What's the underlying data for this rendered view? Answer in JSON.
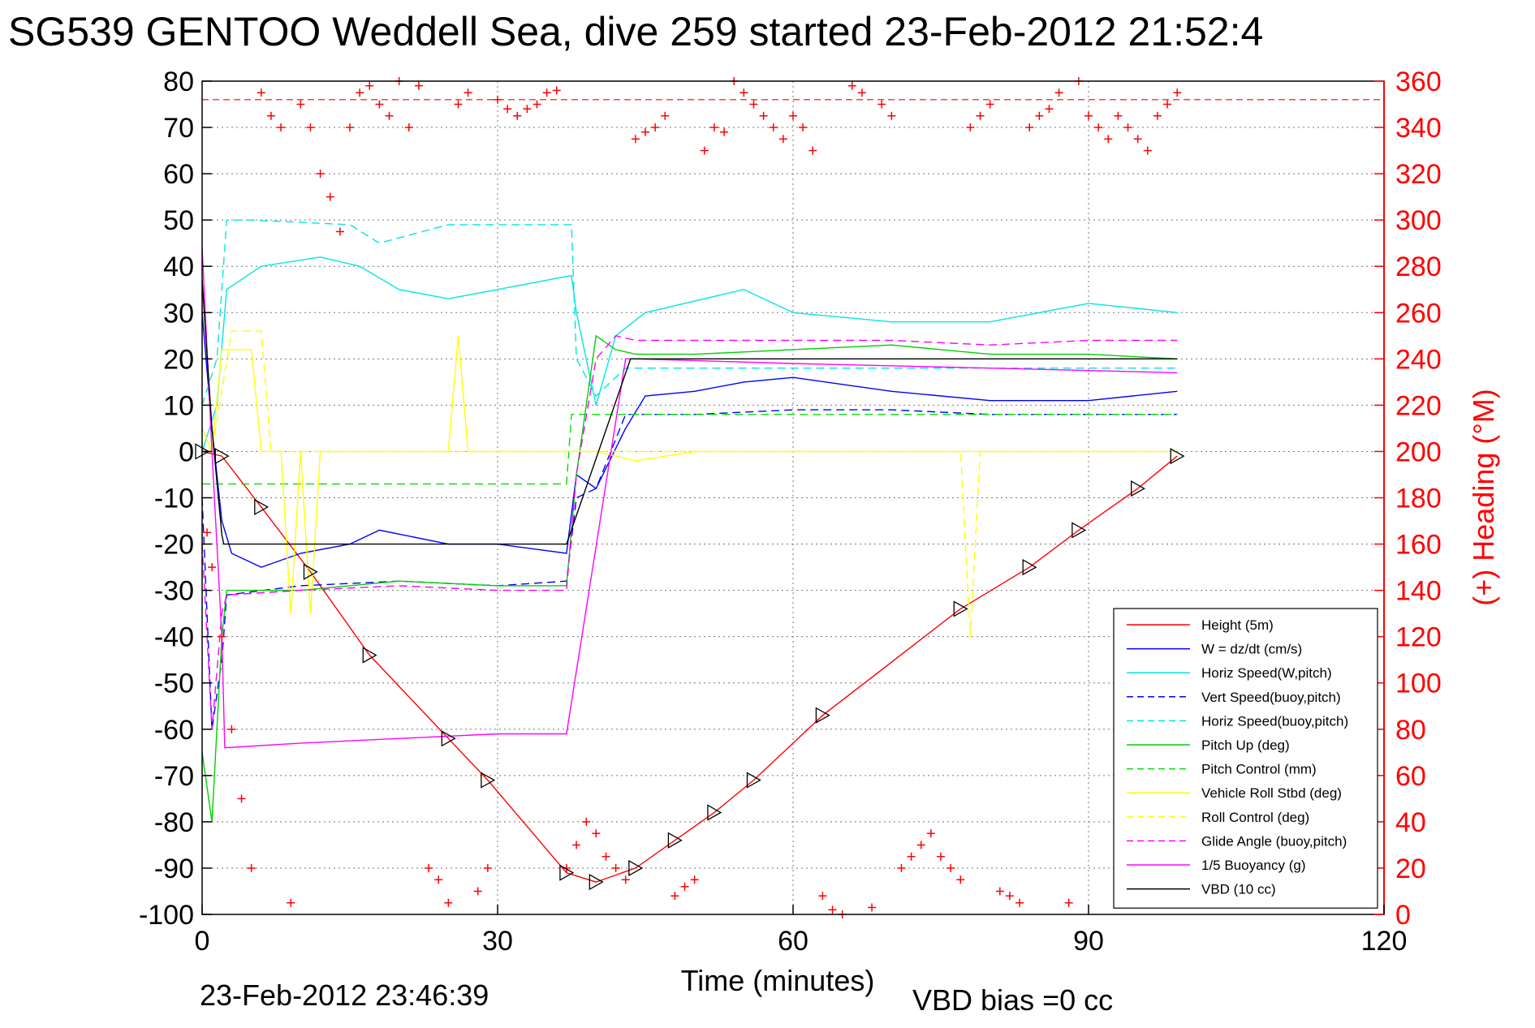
{
  "chart_data": {
    "type": "line",
    "title": "SG539 GENTOO Weddell Sea, dive 259 started 23-Feb-2012 21:52:4",
    "xlabel": "Time (minutes)",
    "ylabel_right": "(+) Heading (°M)",
    "xlim": [
      0,
      120
    ],
    "ylim_left": [
      -100,
      80
    ],
    "ylim_right": [
      0,
      360
    ],
    "xticks": [
      0,
      30,
      60,
      90,
      120
    ],
    "yticks_left": [
      80,
      70,
      60,
      50,
      40,
      30,
      20,
      10,
      0,
      -10,
      -20,
      -30,
      -40,
      -50,
      -60,
      -70,
      -80,
      -90,
      -100
    ],
    "yticks_right": [
      360,
      340,
      320,
      300,
      280,
      260,
      240,
      220,
      200,
      180,
      160,
      140,
      120,
      100,
      80,
      60,
      40,
      20,
      0
    ],
    "grid": true,
    "legend_position": "bottom-right",
    "footer_left": "23-Feb-2012 23:46:39",
    "footer_right": "VBD bias =0 cc",
    "heading_reference": 352,
    "series": [
      {
        "name": "Height (5m)",
        "color": "#ff0000",
        "style": "solid",
        "x": [
          0,
          2,
          6,
          11,
          17,
          25,
          29,
          37,
          40,
          44,
          48,
          52,
          56,
          63,
          77,
          84,
          89,
          95,
          99
        ],
        "y": [
          0,
          -1,
          -12,
          -26,
          -44,
          -62,
          -71,
          -91,
          -93,
          -90,
          -84,
          -78,
          -71,
          -57,
          -34,
          -25,
          -17,
          -8,
          -1
        ]
      },
      {
        "name": "W = dz/dt (cm/s)",
        "color": "#0000ff",
        "style": "solid",
        "x": [
          0,
          1,
          2,
          3,
          6,
          10,
          15,
          18,
          25,
          30,
          37,
          38,
          40,
          43,
          45,
          50,
          55,
          60,
          70,
          80,
          90,
          99
        ],
        "y": [
          30,
          5,
          -15,
          -22,
          -25,
          -22,
          -20,
          -17,
          -20,
          -20,
          -22,
          -5,
          -8,
          5,
          12,
          13,
          15,
          16,
          13,
          11,
          11,
          13
        ]
      },
      {
        "name": "Horiz Speed(W,pitch)",
        "color": "#00e5e5",
        "style": "solid",
        "x": [
          0,
          1.5,
          2.5,
          6,
          12,
          16,
          20,
          25,
          30,
          37.5,
          38,
          40,
          42,
          45,
          55,
          60,
          70,
          80,
          90,
          99
        ],
        "y": [
          0,
          10,
          35,
          40,
          42,
          40,
          35,
          33,
          35,
          38,
          30,
          10,
          25,
          30,
          35,
          30,
          28,
          28,
          32,
          30
        ]
      },
      {
        "name": "Vert Speed(buoy,pitch)",
        "color": "#0000ff",
        "style": "dashed",
        "x": [
          0,
          1,
          2,
          2.5,
          10,
          20,
          30,
          37,
          38,
          40,
          43,
          44,
          50,
          60,
          70,
          80,
          90,
          99
        ],
        "y": [
          -10,
          -60,
          -45,
          -31,
          -29,
          -28,
          -29,
          -28,
          -10,
          -8,
          8,
          8,
          8,
          9,
          9,
          8,
          8,
          8
        ]
      },
      {
        "name": "Horiz Speed(buoy,pitch)",
        "color": "#00e5e5",
        "style": "dashed",
        "x": [
          0,
          1.5,
          2.5,
          5,
          15,
          18,
          25,
          37.5,
          38,
          40,
          43,
          44,
          60,
          80,
          99
        ],
        "y": [
          10,
          20,
          50,
          50,
          49,
          45,
          49,
          49,
          20,
          12,
          18,
          18,
          18,
          18,
          18
        ]
      },
      {
        "name": "Pitch Up (deg)",
        "color": "#00d000",
        "style": "solid",
        "x": [
          0,
          1,
          2,
          2.5,
          10,
          20,
          30,
          37,
          38,
          40,
          42,
          44,
          50,
          60,
          70,
          80,
          90,
          99
        ],
        "y": [
          -65,
          -80,
          -40,
          -30,
          -30,
          -28,
          -29,
          -29,
          -5,
          25,
          22,
          21,
          21,
          22,
          23,
          21,
          21,
          20
        ]
      },
      {
        "name": "Pitch Control (mm)",
        "color": "#00e000",
        "style": "dashed",
        "x": [
          0,
          2,
          2.5,
          37,
          37.5,
          44,
          99
        ],
        "y": [
          -7,
          -7,
          -7,
          -7,
          8,
          8,
          8
        ]
      },
      {
        "name": "Vehicle Roll Stbd (deg)",
        "color": "#ffff00",
        "style": "solid",
        "x": [
          0,
          1,
          2,
          5,
          6,
          8,
          9,
          10,
          11,
          12,
          20,
          25,
          26,
          27,
          30,
          40,
          44,
          50,
          60,
          70,
          80,
          90,
          99
        ],
        "y": [
          5,
          0,
          22,
          22,
          0,
          0,
          -35,
          0,
          -35,
          0,
          0,
          0,
          25,
          0,
          0,
          0,
          -2,
          0,
          0,
          0,
          0,
          0,
          0
        ]
      },
      {
        "name": "Roll Control (deg)",
        "color": "#ffff00",
        "style": "dashed",
        "x": [
          0,
          1,
          3,
          6,
          7,
          20,
          37,
          38,
          40,
          44,
          45,
          60,
          77,
          78,
          79,
          99
        ],
        "y": [
          0,
          0,
          26,
          26,
          0,
          0,
          0,
          0,
          0,
          0,
          0,
          0,
          0,
          -40,
          0,
          0
        ]
      },
      {
        "name": "Glide Angle (buoy,pitch)",
        "color": "#ff00ff",
        "style": "dashed",
        "x": [
          0,
          1,
          2,
          2.5,
          10,
          20,
          30,
          37,
          38,
          40,
          42,
          44,
          50,
          60,
          70,
          80,
          90,
          99
        ],
        "y": [
          -20,
          -60,
          -35,
          -31,
          -30,
          -29,
          -30,
          -30,
          -5,
          20,
          25,
          24,
          24,
          24,
          24,
          23,
          24,
          24
        ]
      },
      {
        "name": "1/5 Buoyancy (g)",
        "color": "#ff00ff",
        "style": "solid",
        "x": [
          0,
          1,
          2,
          2.3,
          10,
          20,
          30,
          37,
          43,
          44,
          60,
          80,
          99
        ],
        "y": [
          44,
          0,
          -40,
          -64,
          -63,
          -62,
          -61,
          -61,
          20,
          20,
          19,
          18,
          17
        ]
      },
      {
        "name": "VBD (10 cc)",
        "color": "#000000",
        "style": "solid",
        "x": [
          0,
          1,
          2,
          2.2,
          37,
          43.5,
          44,
          99
        ],
        "y": [
          37,
          5,
          -18,
          -20,
          -20,
          20,
          20,
          20
        ]
      }
    ],
    "heading_series": {
      "name": "Heading",
      "color": "#ff0000",
      "marker": "+",
      "x": [
        0.5,
        1,
        2,
        3,
        4,
        5,
        6,
        7,
        8,
        9,
        10,
        11,
        12,
        13,
        14,
        15,
        16,
        17,
        18,
        19,
        20,
        21,
        22,
        23,
        24,
        25,
        26,
        27,
        28,
        29,
        30,
        31,
        32,
        33,
        34,
        35,
        36,
        37,
        38,
        39,
        40,
        41,
        42,
        43,
        44,
        45,
        46,
        47,
        48,
        49,
        50,
        51,
        52,
        53,
        54,
        55,
        56,
        57,
        58,
        59,
        60,
        61,
        62,
        63,
        64,
        65,
        66,
        67,
        68,
        69,
        70,
        71,
        72,
        73,
        74,
        75,
        76,
        77,
        78,
        79,
        80,
        81,
        82,
        83,
        84,
        85,
        86,
        87,
        88,
        89,
        90,
        91,
        92,
        93,
        94,
        95,
        96,
        97,
        98,
        99
      ],
      "y": [
        165,
        150,
        120,
        80,
        50,
        20,
        355,
        345,
        340,
        5,
        350,
        340,
        320,
        310,
        295,
        340,
        355,
        358,
        350,
        345,
        360,
        340,
        358,
        20,
        15,
        5,
        350,
        355,
        10,
        20,
        352,
        348,
        345,
        348,
        350,
        355,
        356,
        20,
        30,
        40,
        35,
        25,
        20,
        15,
        335,
        338,
        340,
        345,
        8,
        12,
        15,
        330,
        340,
        338,
        360,
        355,
        350,
        345,
        340,
        335,
        345,
        340,
        330,
        8,
        2,
        0,
        358,
        355,
        3,
        350,
        345,
        20,
        25,
        30,
        35,
        25,
        20,
        15,
        340,
        345,
        350,
        10,
        8,
        5,
        340,
        345,
        348,
        355,
        5,
        360,
        345,
        340,
        335,
        345,
        340,
        335,
        330,
        345,
        350,
        355
      ]
    }
  }
}
